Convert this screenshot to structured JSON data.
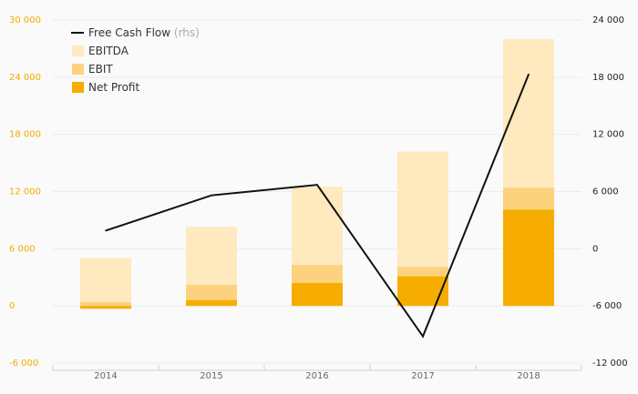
{
  "chart_data": {
    "type": "bar",
    "title": "",
    "xlabel": "",
    "ylabel": "",
    "categories": [
      "2014",
      "2015",
      "2016",
      "2017",
      "2018"
    ],
    "bar_series": [
      {
        "name": "EBITDA",
        "values": [
          5000,
          8300,
          12500,
          16200,
          28000
        ],
        "color": "#ffe9bf"
      },
      {
        "name": "EBIT",
        "values": [
          400,
          2200,
          4300,
          4100,
          12400
        ],
        "color": "#fdd27f"
      },
      {
        "name": "Net Profit",
        "values": [
          -300,
          600,
          2400,
          3100,
          10100
        ],
        "color": "#f7ad00"
      }
    ],
    "line_series": {
      "name": "Free Cash Flow",
      "name_suffix": "(rhs)",
      "axis": "right",
      "values": [
        1900,
        5600,
        6700,
        -9200,
        18300
      ],
      "color": "#111111"
    },
    "y_left": {
      "ylim": [
        -6000,
        30000
      ],
      "ticks": [
        -6000,
        0,
        6000,
        12000,
        18000,
        24000,
        30000
      ],
      "tick_labels": [
        "-6 000",
        "0",
        "6 000",
        "12 000",
        "18 000",
        "24 000",
        "30 000"
      ],
      "color": "#f2ab00"
    },
    "y_right": {
      "ylim": [
        -12000,
        24000
      ],
      "ticks": [
        -12000,
        -6000,
        0,
        6000,
        12000,
        18000,
        24000
      ],
      "tick_labels": [
        "-12 000",
        "-6 000",
        "0",
        "6 000",
        "12 000",
        "18 000",
        "24 000"
      ],
      "color": "#222222"
    },
    "grid": true,
    "legend_position": "top-left"
  }
}
